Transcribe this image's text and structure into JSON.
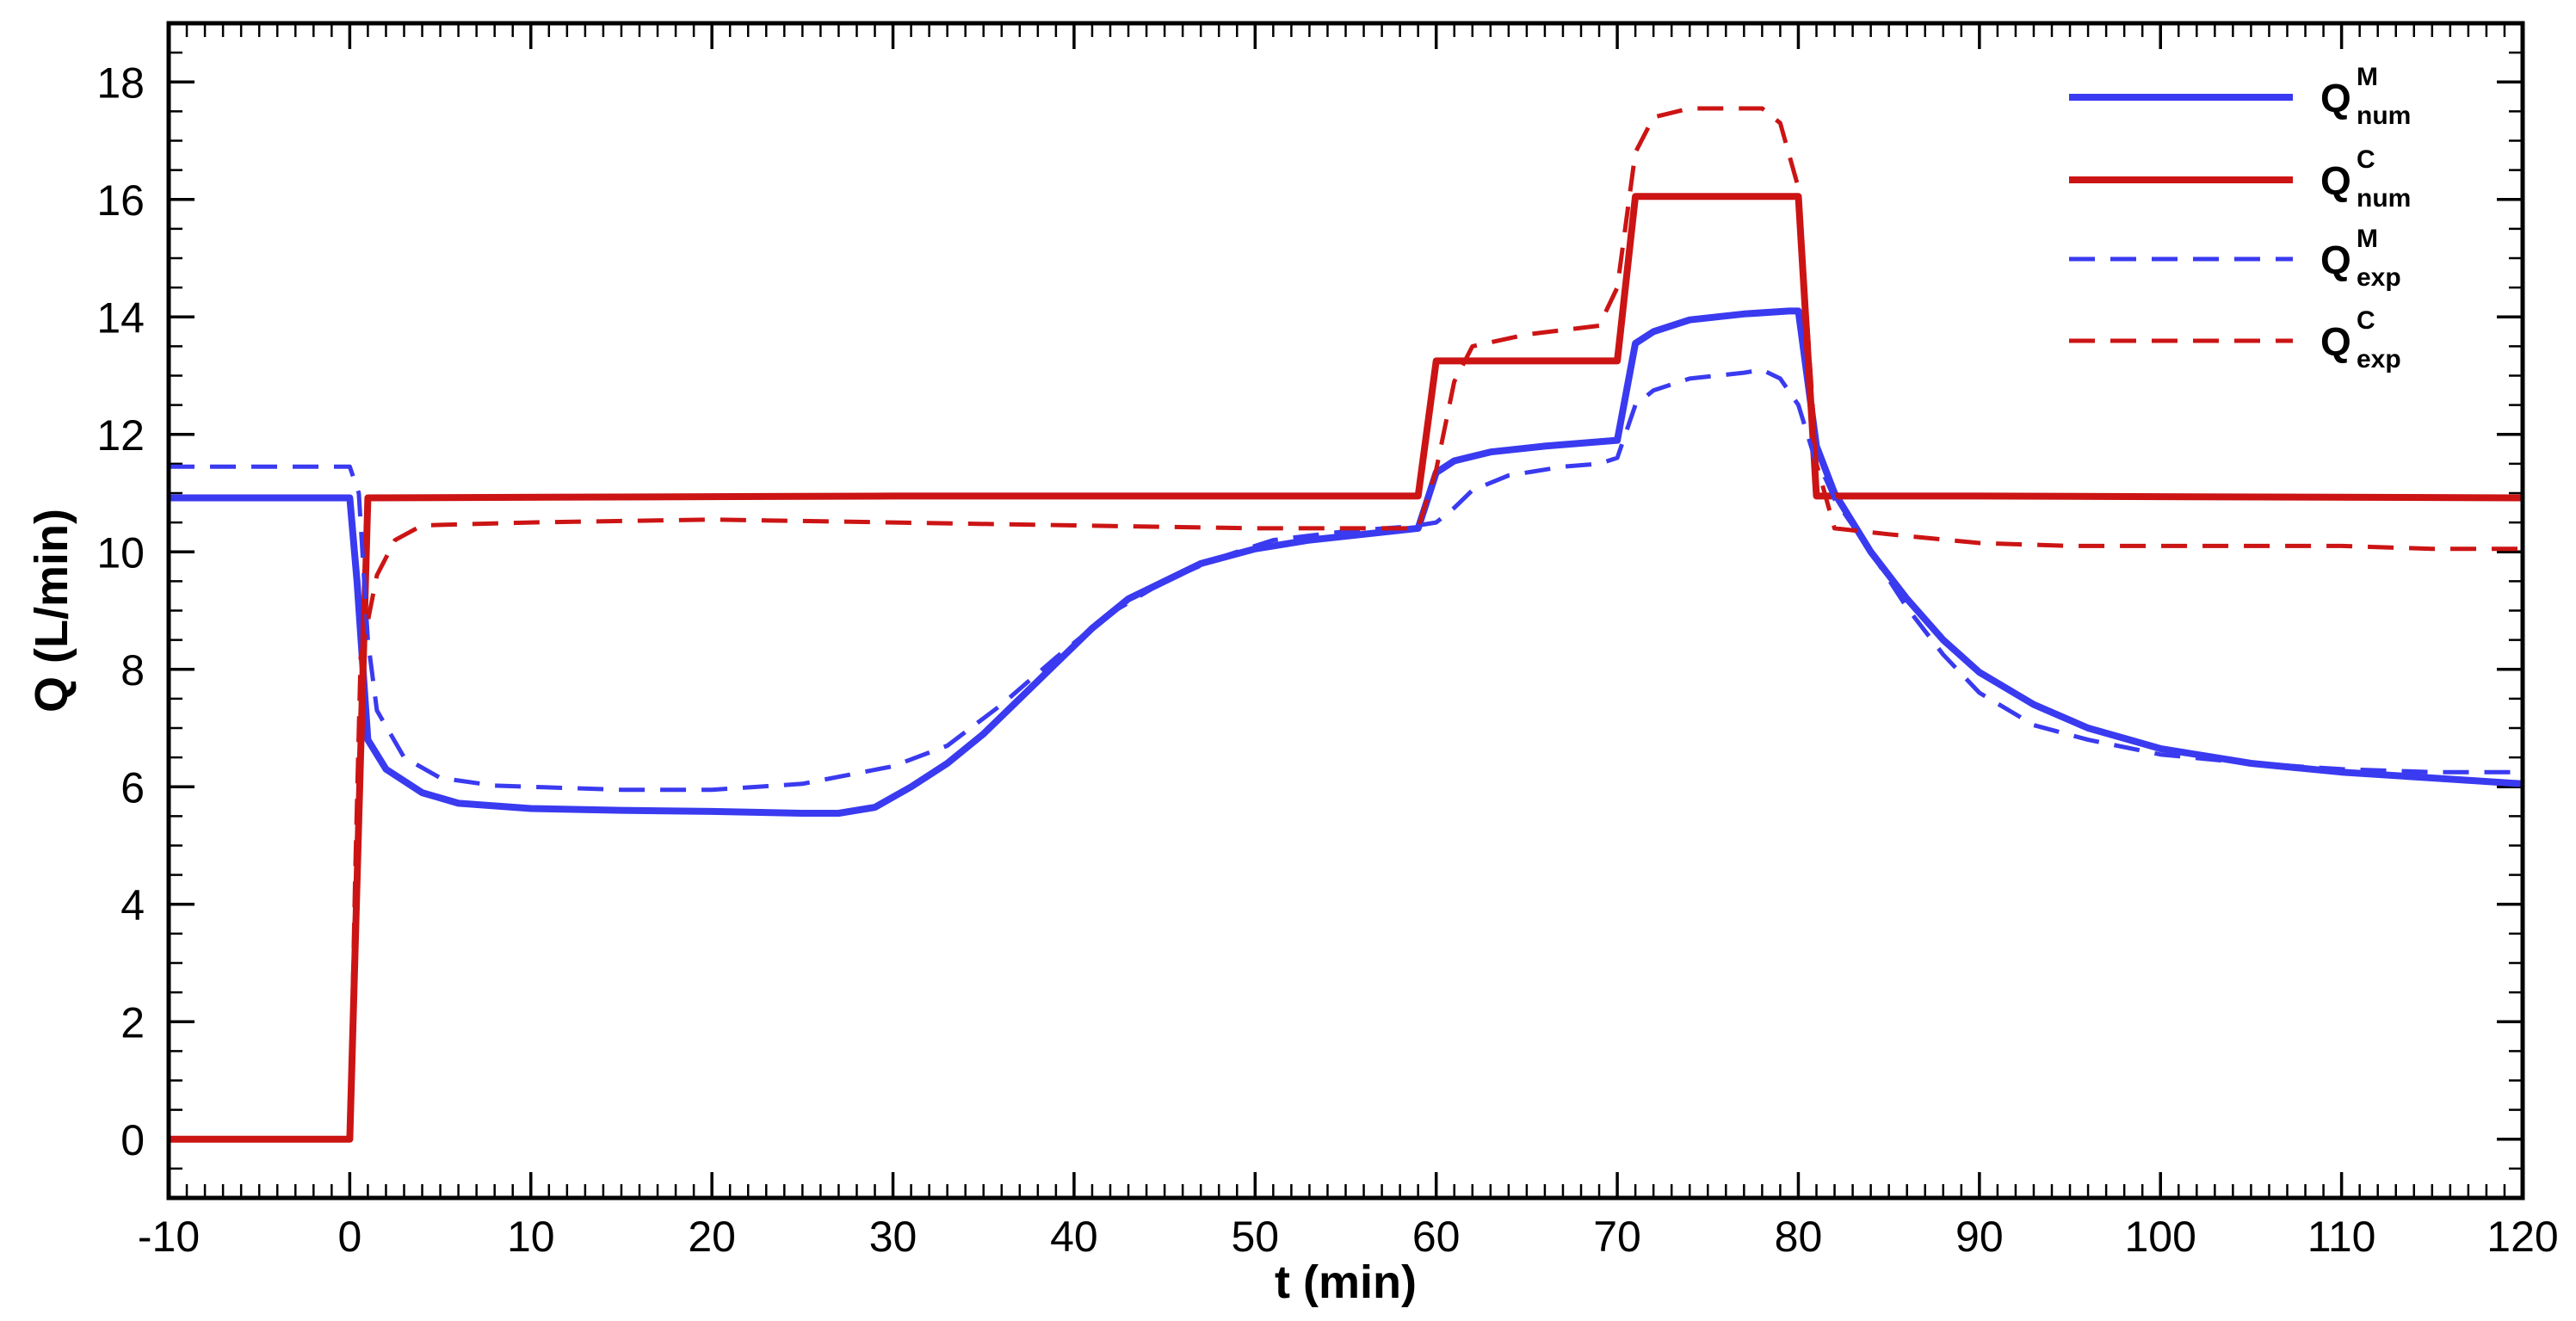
{
  "chart_data": {
    "type": "line",
    "title": "",
    "xlabel": "t (min)",
    "ylabel": "Q (L/min)",
    "xlim": [
      -10,
      120
    ],
    "ylim": [
      -1,
      19
    ],
    "xticks": [
      -10,
      0,
      10,
      20,
      30,
      40,
      50,
      60,
      70,
      80,
      90,
      100,
      110,
      120
    ],
    "yticks": [
      0,
      2,
      4,
      6,
      8,
      10,
      12,
      14,
      16,
      18
    ],
    "x_minor_step": 1,
    "y_minor_step": 0.5,
    "grid": false,
    "legend_position": "top-right",
    "series": [
      {
        "name": "Q",
        "name_sup": "M",
        "name_sub": "num",
        "color": "#3a3af0",
        "dash": "solid",
        "points": [
          [
            -10,
            10.92
          ],
          [
            0,
            10.92
          ],
          [
            0.4,
            9.5
          ],
          [
            1,
            6.8
          ],
          [
            2,
            6.3
          ],
          [
            4,
            5.9
          ],
          [
            6,
            5.72
          ],
          [
            10,
            5.63
          ],
          [
            15,
            5.6
          ],
          [
            20,
            5.58
          ],
          [
            25,
            5.55
          ],
          [
            27,
            5.55
          ],
          [
            29,
            5.65
          ],
          [
            31,
            6.0
          ],
          [
            33,
            6.4
          ],
          [
            35,
            6.9
          ],
          [
            37,
            7.5
          ],
          [
            39,
            8.1
          ],
          [
            41,
            8.7
          ],
          [
            43,
            9.2
          ],
          [
            45,
            9.5
          ],
          [
            47,
            9.8
          ],
          [
            50,
            10.05
          ],
          [
            53,
            10.2
          ],
          [
            56,
            10.3
          ],
          [
            59,
            10.4
          ],
          [
            60,
            11.35
          ],
          [
            61,
            11.55
          ],
          [
            63,
            11.7
          ],
          [
            66,
            11.8
          ],
          [
            70,
            11.9
          ],
          [
            71,
            13.55
          ],
          [
            72,
            13.75
          ],
          [
            74,
            13.95
          ],
          [
            77,
            14.05
          ],
          [
            79.5,
            14.1
          ],
          [
            80,
            14.1
          ],
          [
            81,
            11.8
          ],
          [
            82,
            11.0
          ],
          [
            84,
            10.0
          ],
          [
            86,
            9.2
          ],
          [
            88,
            8.5
          ],
          [
            90,
            7.95
          ],
          [
            93,
            7.4
          ],
          [
            96,
            7.0
          ],
          [
            100,
            6.65
          ],
          [
            105,
            6.4
          ],
          [
            110,
            6.25
          ],
          [
            115,
            6.15
          ],
          [
            120,
            6.05
          ]
        ]
      },
      {
        "name": "Q",
        "name_sup": "C",
        "name_sub": "num",
        "color": "#cc1414",
        "dash": "solid",
        "points": [
          [
            -10,
            0
          ],
          [
            0,
            0
          ],
          [
            1,
            10.92
          ],
          [
            30,
            10.95
          ],
          [
            59,
            10.95
          ],
          [
            60,
            13.25
          ],
          [
            70,
            13.25
          ],
          [
            71,
            16.05
          ],
          [
            80,
            16.05
          ],
          [
            81,
            10.95
          ],
          [
            90,
            10.95
          ],
          [
            120,
            10.92
          ]
        ]
      },
      {
        "name": "Q",
        "name_sup": "M",
        "name_sub": "exp",
        "color": "#3a3af0",
        "dash": "dashed",
        "points": [
          [
            -10,
            11.45
          ],
          [
            0,
            11.45
          ],
          [
            0.5,
            11.0
          ],
          [
            1,
            8.5
          ],
          [
            1.5,
            7.3
          ],
          [
            3,
            6.5
          ],
          [
            5,
            6.15
          ],
          [
            8,
            6.02
          ],
          [
            15,
            5.95
          ],
          [
            20,
            5.95
          ],
          [
            25,
            6.05
          ],
          [
            30,
            6.35
          ],
          [
            33,
            6.7
          ],
          [
            36,
            7.4
          ],
          [
            39,
            8.2
          ],
          [
            42,
            8.95
          ],
          [
            45,
            9.5
          ],
          [
            48,
            9.9
          ],
          [
            51,
            10.2
          ],
          [
            55,
            10.35
          ],
          [
            58,
            10.42
          ],
          [
            59,
            10.45
          ],
          [
            60,
            10.5
          ],
          [
            61,
            10.75
          ],
          [
            62,
            11.05
          ],
          [
            64,
            11.3
          ],
          [
            67,
            11.45
          ],
          [
            69,
            11.5
          ],
          [
            70,
            11.6
          ],
          [
            71,
            12.5
          ],
          [
            72,
            12.75
          ],
          [
            74,
            12.95
          ],
          [
            77,
            13.05
          ],
          [
            78,
            13.1
          ],
          [
            79,
            12.95
          ],
          [
            80,
            12.5
          ],
          [
            81,
            11.5
          ],
          [
            81.5,
            11.25
          ],
          [
            82,
            10.9
          ],
          [
            84,
            10.0
          ],
          [
            86,
            9.05
          ],
          [
            88,
            8.25
          ],
          [
            90,
            7.6
          ],
          [
            93,
            7.05
          ],
          [
            96,
            6.8
          ],
          [
            100,
            6.55
          ],
          [
            105,
            6.4
          ],
          [
            110,
            6.3
          ],
          [
            115,
            6.25
          ],
          [
            120,
            6.25
          ]
        ]
      },
      {
        "name": "Q",
        "name_sup": "C",
        "name_sub": "exp",
        "color": "#cc1414",
        "dash": "dashed",
        "points": [
          [
            -10,
            0
          ],
          [
            0,
            0
          ],
          [
            0.3,
            4.5
          ],
          [
            0.6,
            8.2
          ],
          [
            1.5,
            9.6
          ],
          [
            2.5,
            10.2
          ],
          [
            4,
            10.45
          ],
          [
            10,
            10.5
          ],
          [
            20,
            10.55
          ],
          [
            30,
            10.5
          ],
          [
            40,
            10.45
          ],
          [
            50,
            10.4
          ],
          [
            59,
            10.4
          ],
          [
            60,
            11.4
          ],
          [
            61,
            12.9
          ],
          [
            62,
            13.5
          ],
          [
            65,
            13.7
          ],
          [
            69,
            13.85
          ],
          [
            70,
            14.5
          ],
          [
            71,
            16.8
          ],
          [
            72,
            17.4
          ],
          [
            74,
            17.55
          ],
          [
            78,
            17.55
          ],
          [
            79,
            17.3
          ],
          [
            80,
            16.2
          ],
          [
            81,
            11.5
          ],
          [
            82,
            10.4
          ],
          [
            85,
            10.3
          ],
          [
            90,
            10.15
          ],
          [
            95,
            10.1
          ],
          [
            100,
            10.1
          ],
          [
            105,
            10.1
          ],
          [
            110,
            10.1
          ],
          [
            115,
            10.05
          ],
          [
            120,
            10.05
          ]
        ]
      }
    ]
  }
}
